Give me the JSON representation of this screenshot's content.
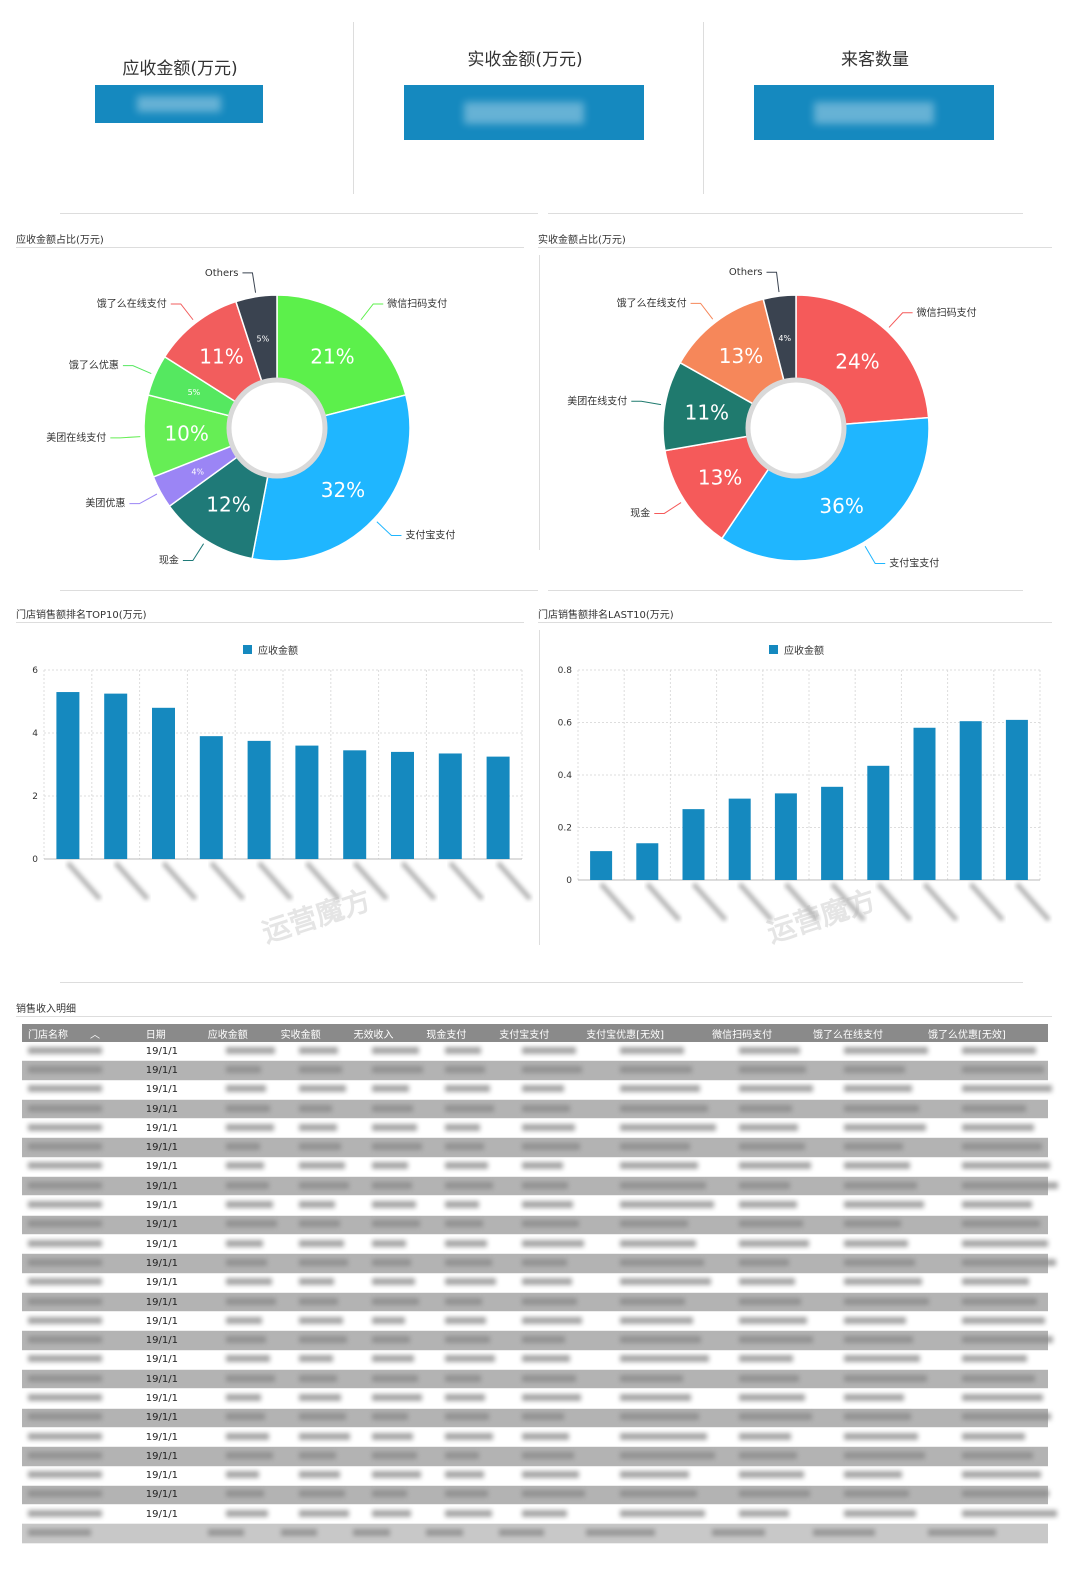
{
  "kpis": [
    {
      "title": "应收金额(万元)"
    },
    {
      "title": "实收金额(万元)"
    },
    {
      "title": "来客数量"
    }
  ],
  "sections": {
    "pie_left_title": "应收金额占比(万元)",
    "pie_right_title": "实收金额占比(万元)",
    "bar_left_title": "门店销售额排名TOP10(万元)",
    "bar_right_title": "门店销售额排名LAST10(万元)",
    "table_title": "销售收入明细"
  },
  "watermark": "运营魔方",
  "colors": {
    "bar": "#1589bf",
    "kpi": "#1589bf"
  },
  "chart_data": [
    {
      "type": "pie",
      "title": "应收金额占比(万元)",
      "donut": true,
      "slices": [
        {
          "label": "微信扫码支付",
          "value": 21,
          "text": "21%",
          "color": "#5cf04b"
        },
        {
          "label": "支付宝支付",
          "value": 32,
          "text": "32%",
          "color": "#1fb6ff"
        },
        {
          "label": "现金",
          "value": 12,
          "text": "12%",
          "color": "#1f7a78"
        },
        {
          "label": "美团优惠",
          "value": 4,
          "text": "4%",
          "color": "#9b85f5"
        },
        {
          "label": "美团在线支付",
          "value": 10,
          "text": "10%",
          "color": "#66ee55"
        },
        {
          "label": "饿了么优惠",
          "value": 5,
          "text": "5%",
          "color": "#55e860"
        },
        {
          "label": "饿了么在线支付",
          "value": 11,
          "text": "11%",
          "color": "#f25d5d"
        },
        {
          "label": "Others",
          "value": 5,
          "text": "5%",
          "color": "#3a4350"
        }
      ]
    },
    {
      "type": "pie",
      "title": "实收金额占比(万元)",
      "donut": true,
      "slices": [
        {
          "label": "微信扫码支付",
          "value": 24,
          "text": "24%",
          "color": "#f55a5a"
        },
        {
          "label": "支付宝支付",
          "value": 36,
          "text": "36%",
          "color": "#1fb6ff"
        },
        {
          "label": "现金",
          "value": 13,
          "text": "13%",
          "color": "#f55a5a"
        },
        {
          "label": "美团在线支付",
          "value": 11,
          "text": "11%",
          "color": "#1f7a6e"
        },
        {
          "label": "饿了么在线支付",
          "value": 13,
          "text": "13%",
          "color": "#f6875a"
        },
        {
          "label": "Others",
          "value": 4,
          "text": "4%",
          "color": "#3a4350"
        }
      ]
    },
    {
      "type": "bar",
      "title": "门店销售额排名TOP10(万元)",
      "legend": "应收金额",
      "values": [
        5.3,
        5.25,
        4.8,
        3.9,
        3.75,
        3.6,
        3.45,
        3.4,
        3.35,
        3.25
      ],
      "ylim": [
        0,
        6
      ],
      "yticks": [
        "0",
        "2",
        "4",
        "6"
      ],
      "grid": true
    },
    {
      "type": "bar",
      "title": "门店销售额排名LAST10(万元)",
      "legend": "应收金额",
      "values": [
        0.11,
        0.14,
        0.27,
        0.31,
        0.33,
        0.355,
        0.435,
        0.58,
        0.605,
        0.61
      ],
      "ylim": [
        0,
        0.8
      ],
      "yticks": [
        "0",
        "0.2",
        "0.4",
        "0.6",
        "0.8"
      ],
      "grid": true
    }
  ],
  "table": {
    "headers": [
      "门店名称",
      "日期",
      "应收金额",
      "实收金额",
      "无效收入",
      "现金支付",
      "支付宝支付",
      "支付宝优惠[无效]",
      "微信扫码支付",
      "饿了么在线支付",
      "饿了么优惠[无效]"
    ],
    "sort_indicator": "︿",
    "dates": [
      "19/1/1",
      "19/1/1",
      "19/1/1",
      "19/1/1",
      "19/1/1",
      "19/1/1",
      "19/1/1",
      "19/1/1",
      "19/1/1",
      "19/1/1",
      "19/1/1",
      "19/1/1",
      "19/1/1",
      "19/1/1",
      "19/1/1",
      "19/1/1",
      "19/1/1",
      "19/1/1",
      "19/1/1",
      "19/1/1",
      "19/1/1",
      "19/1/1",
      "19/1/1",
      "19/1/1",
      "19/1/1"
    ]
  }
}
